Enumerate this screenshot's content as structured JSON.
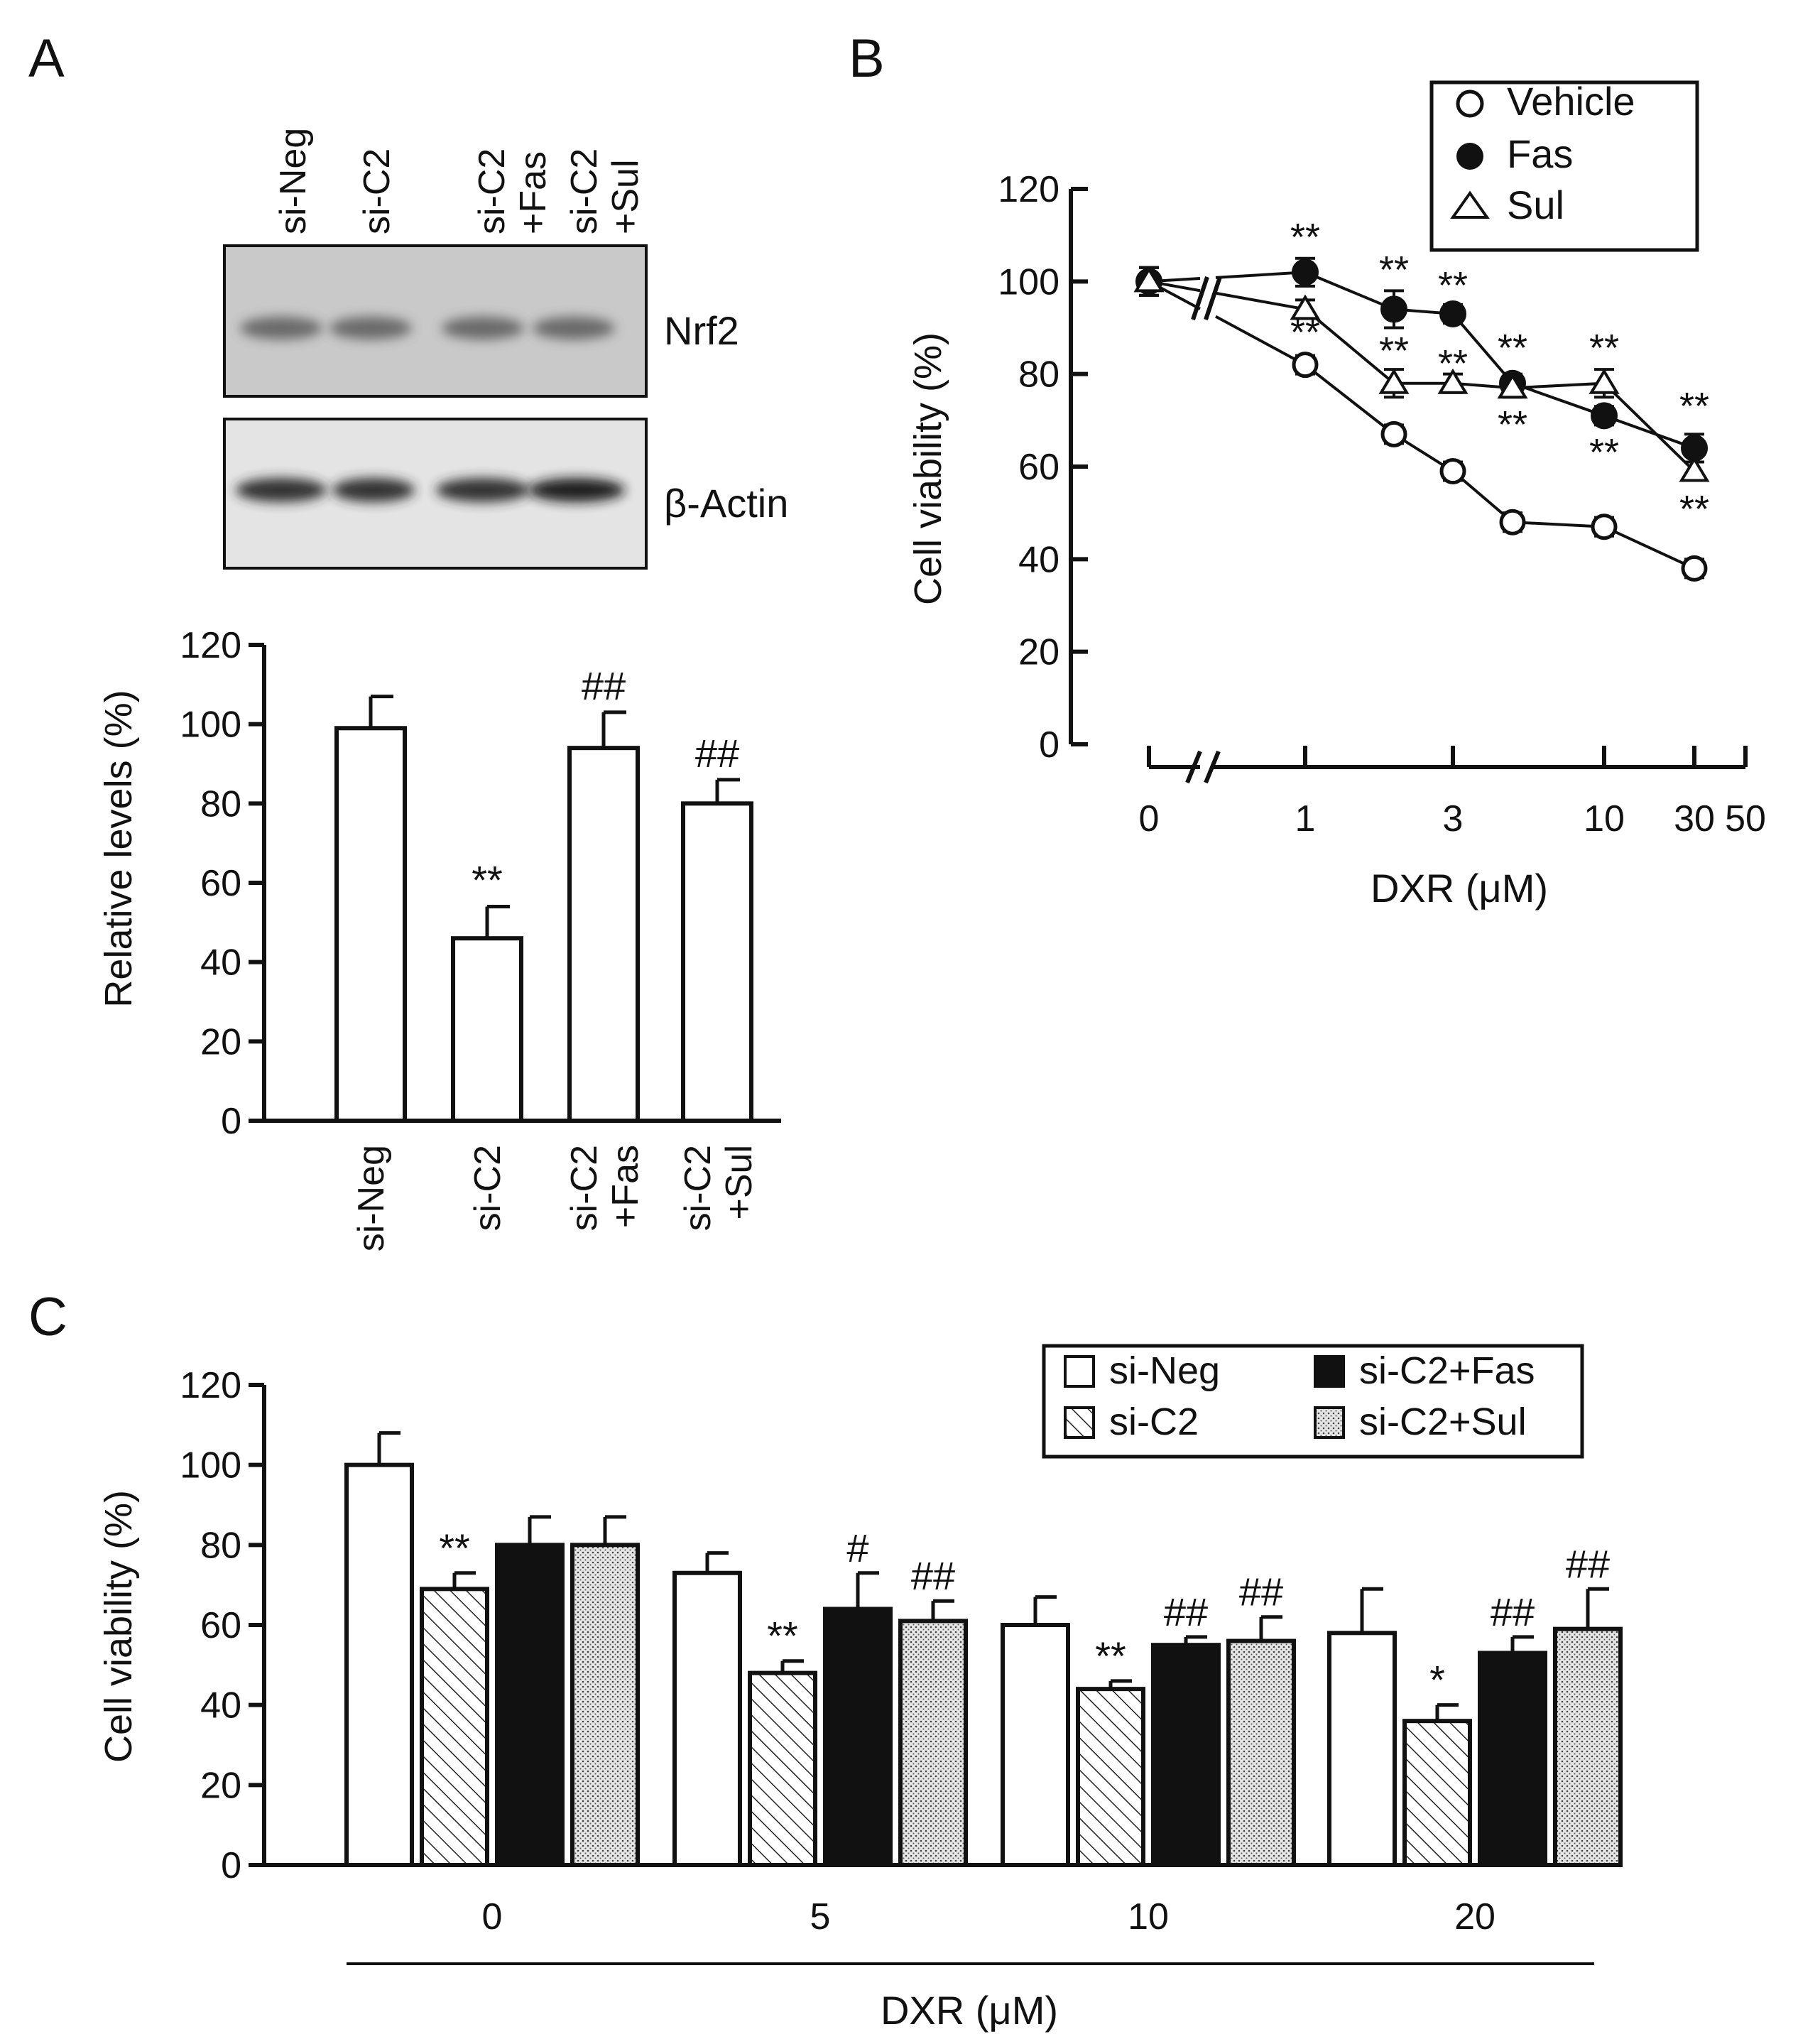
{
  "chart_data": [
    {
      "panel": "A",
      "type": "bar",
      "blot": {
        "lanes": [
          "si-Neg",
          "si-C2",
          "si-C2 +Fas",
          "si-C2 +Sul"
        ],
        "bands": [
          "Nrf2",
          "β-Actin"
        ]
      },
      "categories": [
        "si-Neg",
        "si-C2",
        "si-C2 +Fas",
        "si-C2 +Sul"
      ],
      "values": [
        99,
        46,
        94,
        80
      ],
      "errors": [
        8,
        8,
        9,
        6
      ],
      "annotations": [
        "",
        "**",
        "##",
        "##"
      ],
      "ylabel": "Relative levels (%)",
      "ylim": [
        0,
        120
      ],
      "yticks": [
        0,
        20,
        40,
        60,
        80,
        100,
        120
      ]
    },
    {
      "panel": "B",
      "type": "line",
      "xlabel": "DXR (μM)",
      "ylabel": "Cell viability (%)",
      "ylim": [
        0,
        120
      ],
      "yticks": [
        0,
        20,
        40,
        60,
        80,
        100,
        120
      ],
      "xtick_labels": [
        "0",
        "1",
        "3",
        "10",
        "30",
        "50"
      ],
      "x": [
        0,
        1,
        2,
        3,
        5,
        10,
        30
      ],
      "series": [
        {
          "name": "Vehicle",
          "marker": "open-circle",
          "values": [
            100,
            82,
            67,
            59,
            48,
            47,
            38
          ],
          "errors": [
            3,
            2,
            2,
            2,
            2,
            2,
            2
          ]
        },
        {
          "name": "Fas",
          "marker": "filled-circle",
          "values": [
            100,
            102,
            94,
            93,
            78,
            71,
            64
          ],
          "errors": [
            3,
            3,
            4,
            2,
            2,
            2,
            3
          ]
        },
        {
          "name": "Sul",
          "marker": "open-triangle",
          "values": [
            100,
            94,
            78,
            78,
            77,
            78,
            59
          ],
          "errors": [
            3,
            2,
            3,
            2,
            2,
            3,
            2
          ]
        }
      ],
      "significance": "**",
      "legend": [
        "Vehicle",
        "Fas",
        "Sul"
      ]
    },
    {
      "panel": "C",
      "type": "bar",
      "xlabel": "DXR (μM)",
      "ylabel": "Cell viability  (%)",
      "ylim": [
        0,
        120
      ],
      "yticks": [
        0,
        20,
        40,
        60,
        80,
        100,
        120
      ],
      "categories": [
        "0",
        "5",
        "10",
        "20"
      ],
      "series": [
        {
          "name": "si-Neg",
          "fill": "white",
          "values": [
            100,
            73,
            60,
            58
          ],
          "errors": [
            8,
            5,
            7,
            11
          ],
          "annotations": [
            "",
            "",
            "",
            ""
          ]
        },
        {
          "name": "si-C2",
          "fill": "hatch",
          "values": [
            69,
            48,
            44,
            36
          ],
          "errors": [
            4,
            3,
            2,
            4
          ],
          "annotations": [
            "**",
            "**",
            "**",
            "*"
          ]
        },
        {
          "name": "si-C2+Fas",
          "fill": "black",
          "values": [
            80,
            64,
            55,
            53
          ],
          "errors": [
            7,
            9,
            2,
            4
          ],
          "annotations": [
            "",
            "#",
            "##",
            "##"
          ]
        },
        {
          "name": "si-C2+Sul",
          "fill": "dots",
          "values": [
            80,
            61,
            56,
            59
          ],
          "errors": [
            7,
            5,
            6,
            10
          ],
          "annotations": [
            "",
            "##",
            "##",
            "##"
          ]
        }
      ],
      "legend": [
        "si-Neg",
        "si-C2",
        "si-C2+Fas",
        "si-C2+Sul"
      ]
    }
  ],
  "labels": {
    "panel_a": "A",
    "panel_b": "B",
    "panel_c": "C"
  }
}
